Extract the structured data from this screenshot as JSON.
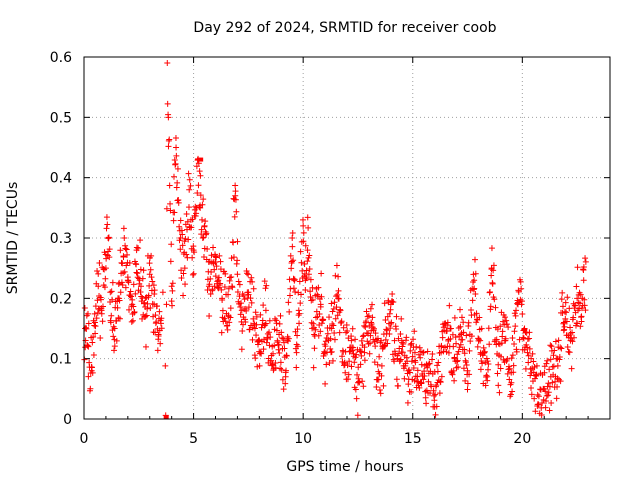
{
  "chart_data": {
    "type": "scatter",
    "title": "Day 292 of 2024, SRMTID for receiver coob",
    "xlabel": "GPS time / hours",
    "ylabel": "SRMTID / TECUs",
    "xlim": [
      0,
      24
    ],
    "ylim": [
      0,
      0.6
    ],
    "x_ticks": [
      0,
      5,
      10,
      15,
      20
    ],
    "x_tick_labels": [
      "0",
      "5",
      "10",
      "15",
      "20"
    ],
    "y_ticks": [
      0,
      0.1,
      0.2,
      0.3,
      0.4,
      0.5,
      0.6
    ],
    "y_tick_labels": [
      "0",
      "0.1",
      "0.2",
      "0.3",
      "0.4",
      "0.5",
      "0.6"
    ],
    "grid": true,
    "marker": "plus",
    "color": "#ff0000",
    "series": [
      {
        "name": "SRMTID",
        "x": [
          0.05,
          0.2,
          0.35,
          0.5,
          0.65,
          0.8,
          1.0,
          1.1,
          1.2,
          1.4,
          1.6,
          1.8,
          2.0,
          2.2,
          2.4,
          2.6,
          2.8,
          3.0,
          3.2,
          3.4,
          3.6,
          3.75,
          3.8,
          3.85,
          4.0,
          4.2,
          4.4,
          4.6,
          4.8,
          5.0,
          5.2,
          5.3,
          5.5,
          5.7,
          6.0,
          6.3,
          6.6,
          6.9,
          7.0,
          7.2,
          7.5,
          7.8,
          8.0,
          8.3,
          8.6,
          8.9,
          9.2,
          9.5,
          9.7,
          9.8,
          10.0,
          10.1,
          10.2,
          10.5,
          10.8,
          11.0,
          11.3,
          11.6,
          11.9,
          12.2,
          12.5,
          12.8,
          13.1,
          13.4,
          13.7,
          14.0,
          14.3,
          14.5,
          14.8,
          15.1,
          15.4,
          15.7,
          16.0,
          16.3,
          16.6,
          16.9,
          17.2,
          17.5,
          17.8,
          18.1,
          18.4,
          18.6,
          18.9,
          19.2,
          19.5,
          19.8,
          20.1,
          20.4,
          20.7,
          21.0,
          21.3,
          21.6,
          21.9,
          22.2,
          22.5,
          22.7,
          22.8
        ],
        "y": [
          0.15,
          0.12,
          0.08,
          0.16,
          0.22,
          0.18,
          0.25,
          0.3,
          0.21,
          0.15,
          0.2,
          0.27,
          0.23,
          0.19,
          0.28,
          0.22,
          0.17,
          0.24,
          0.19,
          0.14,
          0.21,
          0.0,
          0.59,
          0.5,
          0.22,
          0.45,
          0.3,
          0.25,
          0.38,
          0.28,
          0.43,
          0.35,
          0.32,
          0.22,
          0.26,
          0.2,
          0.17,
          0.37,
          0.24,
          0.18,
          0.21,
          0.15,
          0.13,
          0.18,
          0.09,
          0.14,
          0.07,
          0.3,
          0.11,
          0.18,
          0.32,
          0.23,
          0.28,
          0.14,
          0.19,
          0.11,
          0.15,
          0.2,
          0.09,
          0.13,
          0.06,
          0.11,
          0.16,
          0.09,
          0.12,
          0.19,
          0.1,
          0.13,
          0.08,
          0.11,
          0.06,
          0.09,
          0.02,
          0.12,
          0.16,
          0.1,
          0.14,
          0.08,
          0.23,
          0.11,
          0.07,
          0.25,
          0.09,
          0.13,
          0.06,
          0.19,
          0.15,
          0.1,
          0.04,
          0.05,
          0.07,
          0.1,
          0.16,
          0.13,
          0.2,
          0.17,
          0.23
        ]
      }
    ]
  }
}
